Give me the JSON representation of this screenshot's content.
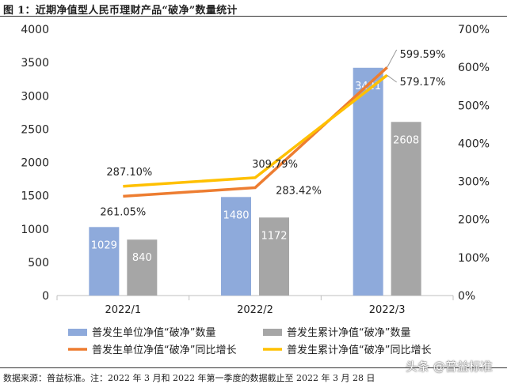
{
  "figure_title": "图 1：近期净值型人民币理财产品“破净”数量统计",
  "footnote": "数据来源：普益标准。注：2022 年 3 月和 2022 年第一季度的数据截止至 2022 年 3 月 28 日",
  "watermark": "头条 @普益标准",
  "colors": {
    "bar1": "#8eaadb",
    "bar2": "#a6a6a6",
    "line1": "#ed7d31",
    "line2": "#ffc000",
    "axis": "#bfbfbf"
  },
  "chart_data": {
    "type": "bar",
    "title": "",
    "categories": [
      "2022/1",
      "2022/2",
      "2022/3"
    ],
    "y_left": {
      "min": 0,
      "max": 4000,
      "ticks": [
        "0",
        "500",
        "1000",
        "1500",
        "2000",
        "2500",
        "3000",
        "3500",
        "4000"
      ]
    },
    "y_right": {
      "min": 0,
      "max": 700,
      "unit": "%",
      "ticks": [
        "0%",
        "100%",
        "200%",
        "300%",
        "400%",
        "500%",
        "600%",
        "700%"
      ]
    },
    "series": [
      {
        "name": "普发生单位净值“破净”数量",
        "type": "bar",
        "axis": "left",
        "values": [
          1029,
          1480,
          3421
        ],
        "labels": [
          "1029",
          "1480",
          "3421"
        ]
      },
      {
        "name": "普发生累计净值“破净”数量",
        "type": "bar",
        "axis": "left",
        "values": [
          840,
          1172,
          2608
        ],
        "labels": [
          "840",
          "1172",
          "2608"
        ]
      },
      {
        "name": "普发生单位净值“破净”同比增长",
        "type": "line",
        "axis": "right",
        "values": [
          261.05,
          283.42,
          599.59
        ],
        "labels": [
          "261.05%",
          "283.42%",
          "599.59%"
        ]
      },
      {
        "name": "普发生累计净值“破净”同比增长",
        "type": "line",
        "axis": "right",
        "values": [
          287.1,
          309.79,
          579.17
        ],
        "labels": [
          "287.10%",
          "309.79%",
          "579.17%"
        ]
      }
    ],
    "grid": false,
    "legend_position": "bottom"
  }
}
